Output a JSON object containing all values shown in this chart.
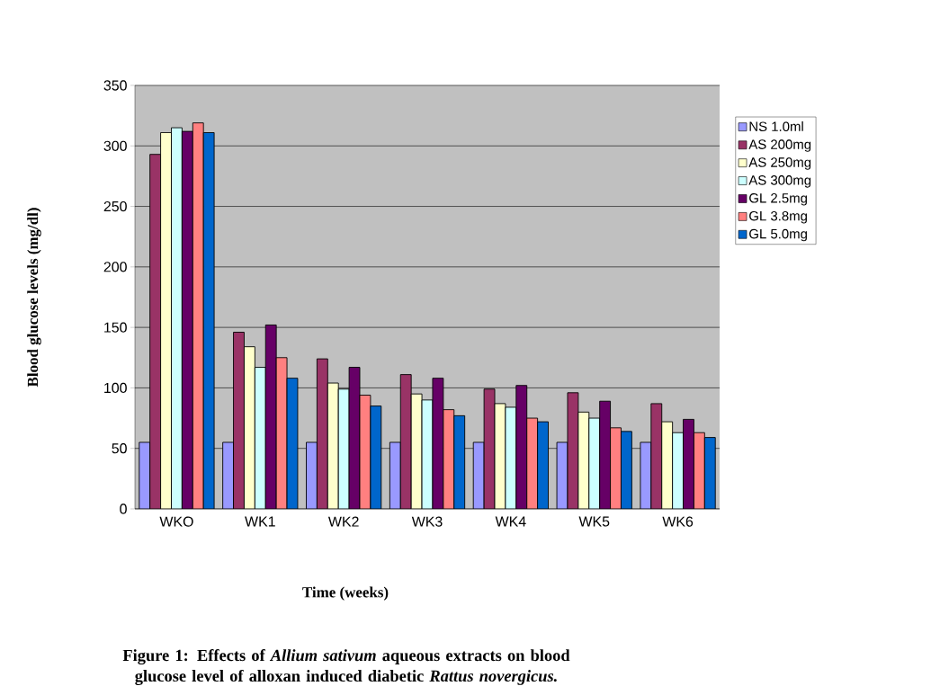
{
  "chart_data": {
    "type": "bar",
    "title": "Figure 1: Effects of *Allium sativum* aqueous extracts on blood glucose level of alloxan induced diabetic *Rattus novergicus.*",
    "xlabel": "Time (weeks)",
    "ylabel": "Blood glucose levels (mg/dl)",
    "categories": [
      "WKO",
      "WK1",
      "WK2",
      "WK3",
      "WK4",
      "WK5",
      "WK6"
    ],
    "series": [
      {
        "name": "NS 1.0ml",
        "color": "#9999ff",
        "values": [
          55,
          55,
          55,
          55,
          55,
          55,
          55
        ]
      },
      {
        "name": "AS 200mg",
        "color": "#993366",
        "values": [
          293,
          146,
          124,
          111,
          99,
          96,
          87
        ]
      },
      {
        "name": "AS 250mg",
        "color": "#ffffcc",
        "values": [
          311,
          134,
          104,
          95,
          87,
          80,
          72
        ]
      },
      {
        "name": "AS 300mg",
        "color": "#ccffff",
        "values": [
          315,
          117,
          99,
          90,
          84,
          75,
          63
        ]
      },
      {
        "name": "GL 2.5mg",
        "color": "#660066",
        "values": [
          312,
          152,
          117,
          108,
          102,
          89,
          74
        ]
      },
      {
        "name": "GL 3.8mg",
        "color": "#ff8080",
        "values": [
          319,
          125,
          94,
          82,
          75,
          67,
          63
        ]
      },
      {
        "name": "GL 5.0mg",
        "color": "#0066cc",
        "values": [
          311,
          108,
          85,
          77,
          72,
          64,
          59
        ]
      }
    ],
    "ylim": [
      0,
      350
    ],
    "yticks": [
      0,
      50,
      100,
      150,
      200,
      250,
      300,
      350
    ],
    "grid": "y",
    "legend": "right"
  }
}
